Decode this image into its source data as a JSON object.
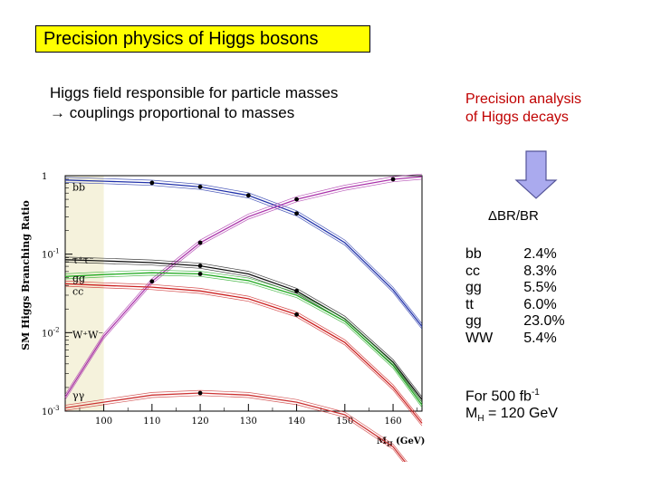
{
  "slide": {
    "title": "Precision physics of Higgs bosons",
    "intro_line1": "Higgs field responsible for particle masses",
    "intro_line2": "→ couplings proportional to masses",
    "right_line1": "Precision analysis",
    "right_line2": "of Higgs decays",
    "dbr_label": "ΔBR/BR",
    "br_rows": [
      {
        "channel": "bb",
        "value": "2.4%"
      },
      {
        "channel": "cc",
        "value": "8.3%"
      },
      {
        "channel": "gg",
        "value": "5.5%"
      },
      {
        "channel": "tt",
        "value": "6.0%"
      },
      {
        "channel": "gg",
        "value": "23.0%"
      },
      {
        "channel": "WW",
        "value": "5.4%"
      }
    ],
    "footer_line1_pre": "For 500 fb",
    "footer_line1_sup": "-1",
    "footer_line2_pre": "M",
    "footer_line2_sub": "H",
    "footer_line2_post": " = 120 GeV",
    "colors": {
      "title_bg": "#ffff00",
      "accent_red": "#c00000",
      "arrow_fill": "#aaaaee",
      "band": "#f5f2dc"
    }
  },
  "chart_data": {
    "type": "line",
    "ylabel": "SM Higgs Branching Ratio",
    "xlabel_main": "M",
    "xlabel_sub": "H",
    "xlabel_unit": "(GeV)",
    "x_ticks": [
      "100",
      "110",
      "120",
      "130",
      "140",
      "150",
      "160"
    ],
    "y_ticks": [
      "1",
      "10",
      "10",
      "10"
    ],
    "y_tick_exp": [
      "",
      "-1",
      "-2",
      "-3"
    ],
    "xlim": [
      92,
      166
    ],
    "ylim_log10": [
      -3,
      0
    ],
    "log_y": true,
    "series": [
      {
        "name": "bb",
        "color": "#2233aa",
        "x": [
          92,
          100,
          110,
          120,
          130,
          140,
          150,
          160,
          166
        ],
        "y": [
          0.88,
          0.85,
          0.81,
          0.72,
          0.56,
          0.33,
          0.14,
          0.035,
          0.012
        ]
      },
      {
        "name": "WW",
        "color": "#aa33aa",
        "x": [
          92,
          100,
          110,
          120,
          130,
          140,
          150,
          160,
          166
        ],
        "y": [
          0.0015,
          0.009,
          0.045,
          0.14,
          0.3,
          0.5,
          0.7,
          0.9,
          0.97
        ]
      },
      {
        "name": "ττ",
        "color": "#111111",
        "x": [
          92,
          100,
          110,
          120,
          130,
          140,
          150,
          160,
          166
        ],
        "y": [
          0.085,
          0.082,
          0.078,
          0.071,
          0.056,
          0.034,
          0.015,
          0.0042,
          0.0014
        ]
      },
      {
        "name": "cc",
        "color": "#cc2222",
        "x": [
          92,
          100,
          110,
          120,
          130,
          140,
          150,
          160,
          166
        ],
        "y": [
          0.042,
          0.04,
          0.038,
          0.034,
          0.027,
          0.017,
          0.0075,
          0.002,
          0.0007
        ]
      },
      {
        "name": "gg",
        "color": "#22aa22",
        "x": [
          92,
          100,
          110,
          120,
          130,
          140,
          150,
          160,
          166
        ],
        "y": [
          0.052,
          0.055,
          0.058,
          0.056,
          0.046,
          0.03,
          0.014,
          0.0038,
          0.0012
        ]
      },
      {
        "name": "γγ",
        "color": "#cc3333",
        "x": [
          92,
          100,
          110,
          120,
          130,
          140,
          150,
          160,
          166
        ],
        "y": [
          0.0011,
          0.0013,
          0.0016,
          0.0017,
          0.0016,
          0.0013,
          0.0009,
          0.00035,
          0.00012
        ]
      }
    ],
    "channel_labels": [
      {
        "text": "bb",
        "y": 0.72
      },
      {
        "text": "τ⁺τ⁻",
        "y": 0.085
      },
      {
        "text": "gg",
        "y": 0.05
      },
      {
        "text": "cc",
        "y": 0.034
      },
      {
        "text": "W⁺W⁻",
        "y": 0.0095
      },
      {
        "text": "γγ",
        "y": 0.0016
      }
    ],
    "markers": [
      {
        "x": 110,
        "y": 0.81
      },
      {
        "x": 120,
        "y": 0.72
      },
      {
        "x": 130,
        "y": 0.56
      },
      {
        "x": 140,
        "y": 0.33
      },
      {
        "x": 120,
        "y": 0.14
      },
      {
        "x": 140,
        "y": 0.5
      },
      {
        "x": 160,
        "y": 0.9
      },
      {
        "x": 120,
        "y": 0.071
      },
      {
        "x": 140,
        "y": 0.034
      },
      {
        "x": 120,
        "y": 0.056
      },
      {
        "x": 140,
        "y": 0.017
      },
      {
        "x": 110,
        "y": 0.045
      },
      {
        "x": 120,
        "y": 0.0017
      }
    ]
  }
}
